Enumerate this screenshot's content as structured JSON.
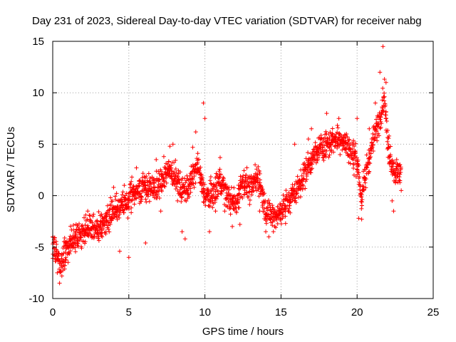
{
  "chart_data": {
    "type": "scatter",
    "title": "Day 231 of 2023, Sidereal Day-to-day VTEC variation (SDTVAR) for receiver nabg",
    "xlabel": "GPS time / hours",
    "ylabel": "SDTVAR / TECUs",
    "xlim": [
      0,
      25
    ],
    "ylim": [
      -10,
      15
    ],
    "xticks": [
      0,
      5,
      10,
      15,
      20,
      25
    ],
    "yticks": [
      -10,
      -5,
      0,
      5,
      10,
      15
    ],
    "xtick_labels": [
      "0",
      "5",
      "10",
      "15",
      "20",
      "25"
    ],
    "ytick_labels": [
      "-10",
      "-5",
      "0",
      "5",
      "10",
      "15"
    ],
    "grid": true,
    "legend": "none",
    "marker": "+",
    "colors": {
      "points": "#ff0000",
      "grid": "#a0a0a0",
      "frame": "#000000"
    },
    "series": [
      {
        "name": "SDTVAR",
        "trend": [
          [
            0.0,
            -4.8
          ],
          [
            0.3,
            -5.5
          ],
          [
            0.5,
            -6.8
          ],
          [
            0.7,
            -6.0
          ],
          [
            1.0,
            -5.0
          ],
          [
            1.5,
            -4.0
          ],
          [
            2.0,
            -3.5
          ],
          [
            2.5,
            -3.0
          ],
          [
            3.0,
            -3.3
          ],
          [
            3.5,
            -2.5
          ],
          [
            4.0,
            -1.5
          ],
          [
            4.5,
            -1.0
          ],
          [
            5.0,
            -0.5
          ],
          [
            5.5,
            0.5
          ],
          [
            6.0,
            1.0
          ],
          [
            6.5,
            0.5
          ],
          [
            7.0,
            1.0
          ],
          [
            7.5,
            2.5
          ],
          [
            8.0,
            2.0
          ],
          [
            8.5,
            0.5
          ],
          [
            9.0,
            1.0
          ],
          [
            9.5,
            3.0
          ],
          [
            10.0,
            0.0
          ],
          [
            10.5,
            0.0
          ],
          [
            11.0,
            1.5
          ],
          [
            11.5,
            0.0
          ],
          [
            12.0,
            -1.0
          ],
          [
            12.5,
            1.5
          ],
          [
            13.0,
            0.5
          ],
          [
            13.5,
            2.0
          ],
          [
            14.0,
            -1.5
          ],
          [
            14.5,
            -2.0
          ],
          [
            15.0,
            -1.5
          ],
          [
            15.5,
            -0.5
          ],
          [
            16.0,
            0.5
          ],
          [
            16.5,
            2.0
          ],
          [
            17.0,
            3.5
          ],
          [
            17.5,
            4.5
          ],
          [
            18.0,
            5.0
          ],
          [
            18.5,
            5.5
          ],
          [
            19.0,
            5.5
          ],
          [
            19.5,
            4.5
          ],
          [
            20.0,
            3.5
          ],
          [
            20.3,
            -0.5
          ],
          [
            20.6,
            2.5
          ],
          [
            21.0,
            5.0
          ],
          [
            21.5,
            7.5
          ],
          [
            21.8,
            10.0
          ],
          [
            22.0,
            5.0
          ],
          [
            22.3,
            3.0
          ],
          [
            22.6,
            2.0
          ],
          [
            22.9,
            2.5
          ]
        ],
        "values": [
          [
            0.0,
            -4.0
          ],
          [
            0.1,
            -5.8
          ],
          [
            0.2,
            -6.2
          ],
          [
            0.3,
            -7.5
          ],
          [
            0.45,
            -8.5
          ],
          [
            0.6,
            -7.8
          ],
          [
            0.8,
            -6.8
          ],
          [
            1.0,
            -5.6
          ],
          [
            1.3,
            -4.6
          ],
          [
            1.6,
            -4.0
          ],
          [
            2.0,
            -3.2
          ],
          [
            2.3,
            -1.5
          ],
          [
            2.5,
            -2.4
          ],
          [
            2.9,
            -4.0
          ],
          [
            3.2,
            -1.8
          ],
          [
            3.5,
            -3.5
          ],
          [
            3.8,
            -0.2
          ],
          [
            4.0,
            0.8
          ],
          [
            4.2,
            -2.0
          ],
          [
            4.4,
            -5.4
          ],
          [
            4.7,
            1.0
          ],
          [
            5.0,
            -6.0
          ],
          [
            5.2,
            1.8
          ],
          [
            5.5,
            2.7
          ],
          [
            6.0,
            1.3
          ],
          [
            6.1,
            -4.6
          ],
          [
            6.6,
            0.0
          ],
          [
            6.8,
            3.5
          ],
          [
            7.1,
            -1.5
          ],
          [
            7.3,
            3.8
          ],
          [
            7.7,
            4.8
          ],
          [
            7.9,
            5.0
          ],
          [
            8.2,
            -0.5
          ],
          [
            8.5,
            -3.5
          ],
          [
            8.7,
            -4.2
          ],
          [
            9.2,
            4.7
          ],
          [
            9.4,
            6.2
          ],
          [
            9.9,
            9.0
          ],
          [
            10.0,
            7.5
          ],
          [
            10.3,
            -3.5
          ],
          [
            10.7,
            -1.5
          ],
          [
            11.0,
            3.7
          ],
          [
            11.3,
            -1.5
          ],
          [
            11.8,
            -3.0
          ],
          [
            12.3,
            -2.8
          ],
          [
            12.7,
            2.0
          ],
          [
            13.3,
            3.0
          ],
          [
            13.6,
            -1.5
          ],
          [
            14.0,
            -3.5
          ],
          [
            14.2,
            -4.0
          ],
          [
            14.5,
            -3.5
          ],
          [
            15.3,
            -2.7
          ],
          [
            15.7,
            0.5
          ],
          [
            15.9,
            5.0
          ],
          [
            16.3,
            2.5
          ],
          [
            16.8,
            5.5
          ],
          [
            17.0,
            6.5
          ],
          [
            17.4,
            4.5
          ],
          [
            17.8,
            5.5
          ],
          [
            18.0,
            8.0
          ],
          [
            18.3,
            6.0
          ],
          [
            18.8,
            7.5
          ],
          [
            19.3,
            6.0
          ],
          [
            19.8,
            2.0
          ],
          [
            20.0,
            7.5
          ],
          [
            20.1,
            -2.2
          ],
          [
            20.3,
            -2.3
          ],
          [
            20.5,
            1.5
          ],
          [
            20.8,
            6.5
          ],
          [
            21.2,
            9.0
          ],
          [
            21.5,
            12.0
          ],
          [
            21.7,
            14.5
          ],
          [
            21.9,
            11.0
          ],
          [
            22.1,
            5.8
          ],
          [
            22.3,
            -0.5
          ],
          [
            22.4,
            -1.5
          ],
          [
            22.6,
            3.5
          ],
          [
            22.8,
            3.0
          ],
          [
            22.9,
            0.5
          ]
        ]
      }
    ]
  }
}
